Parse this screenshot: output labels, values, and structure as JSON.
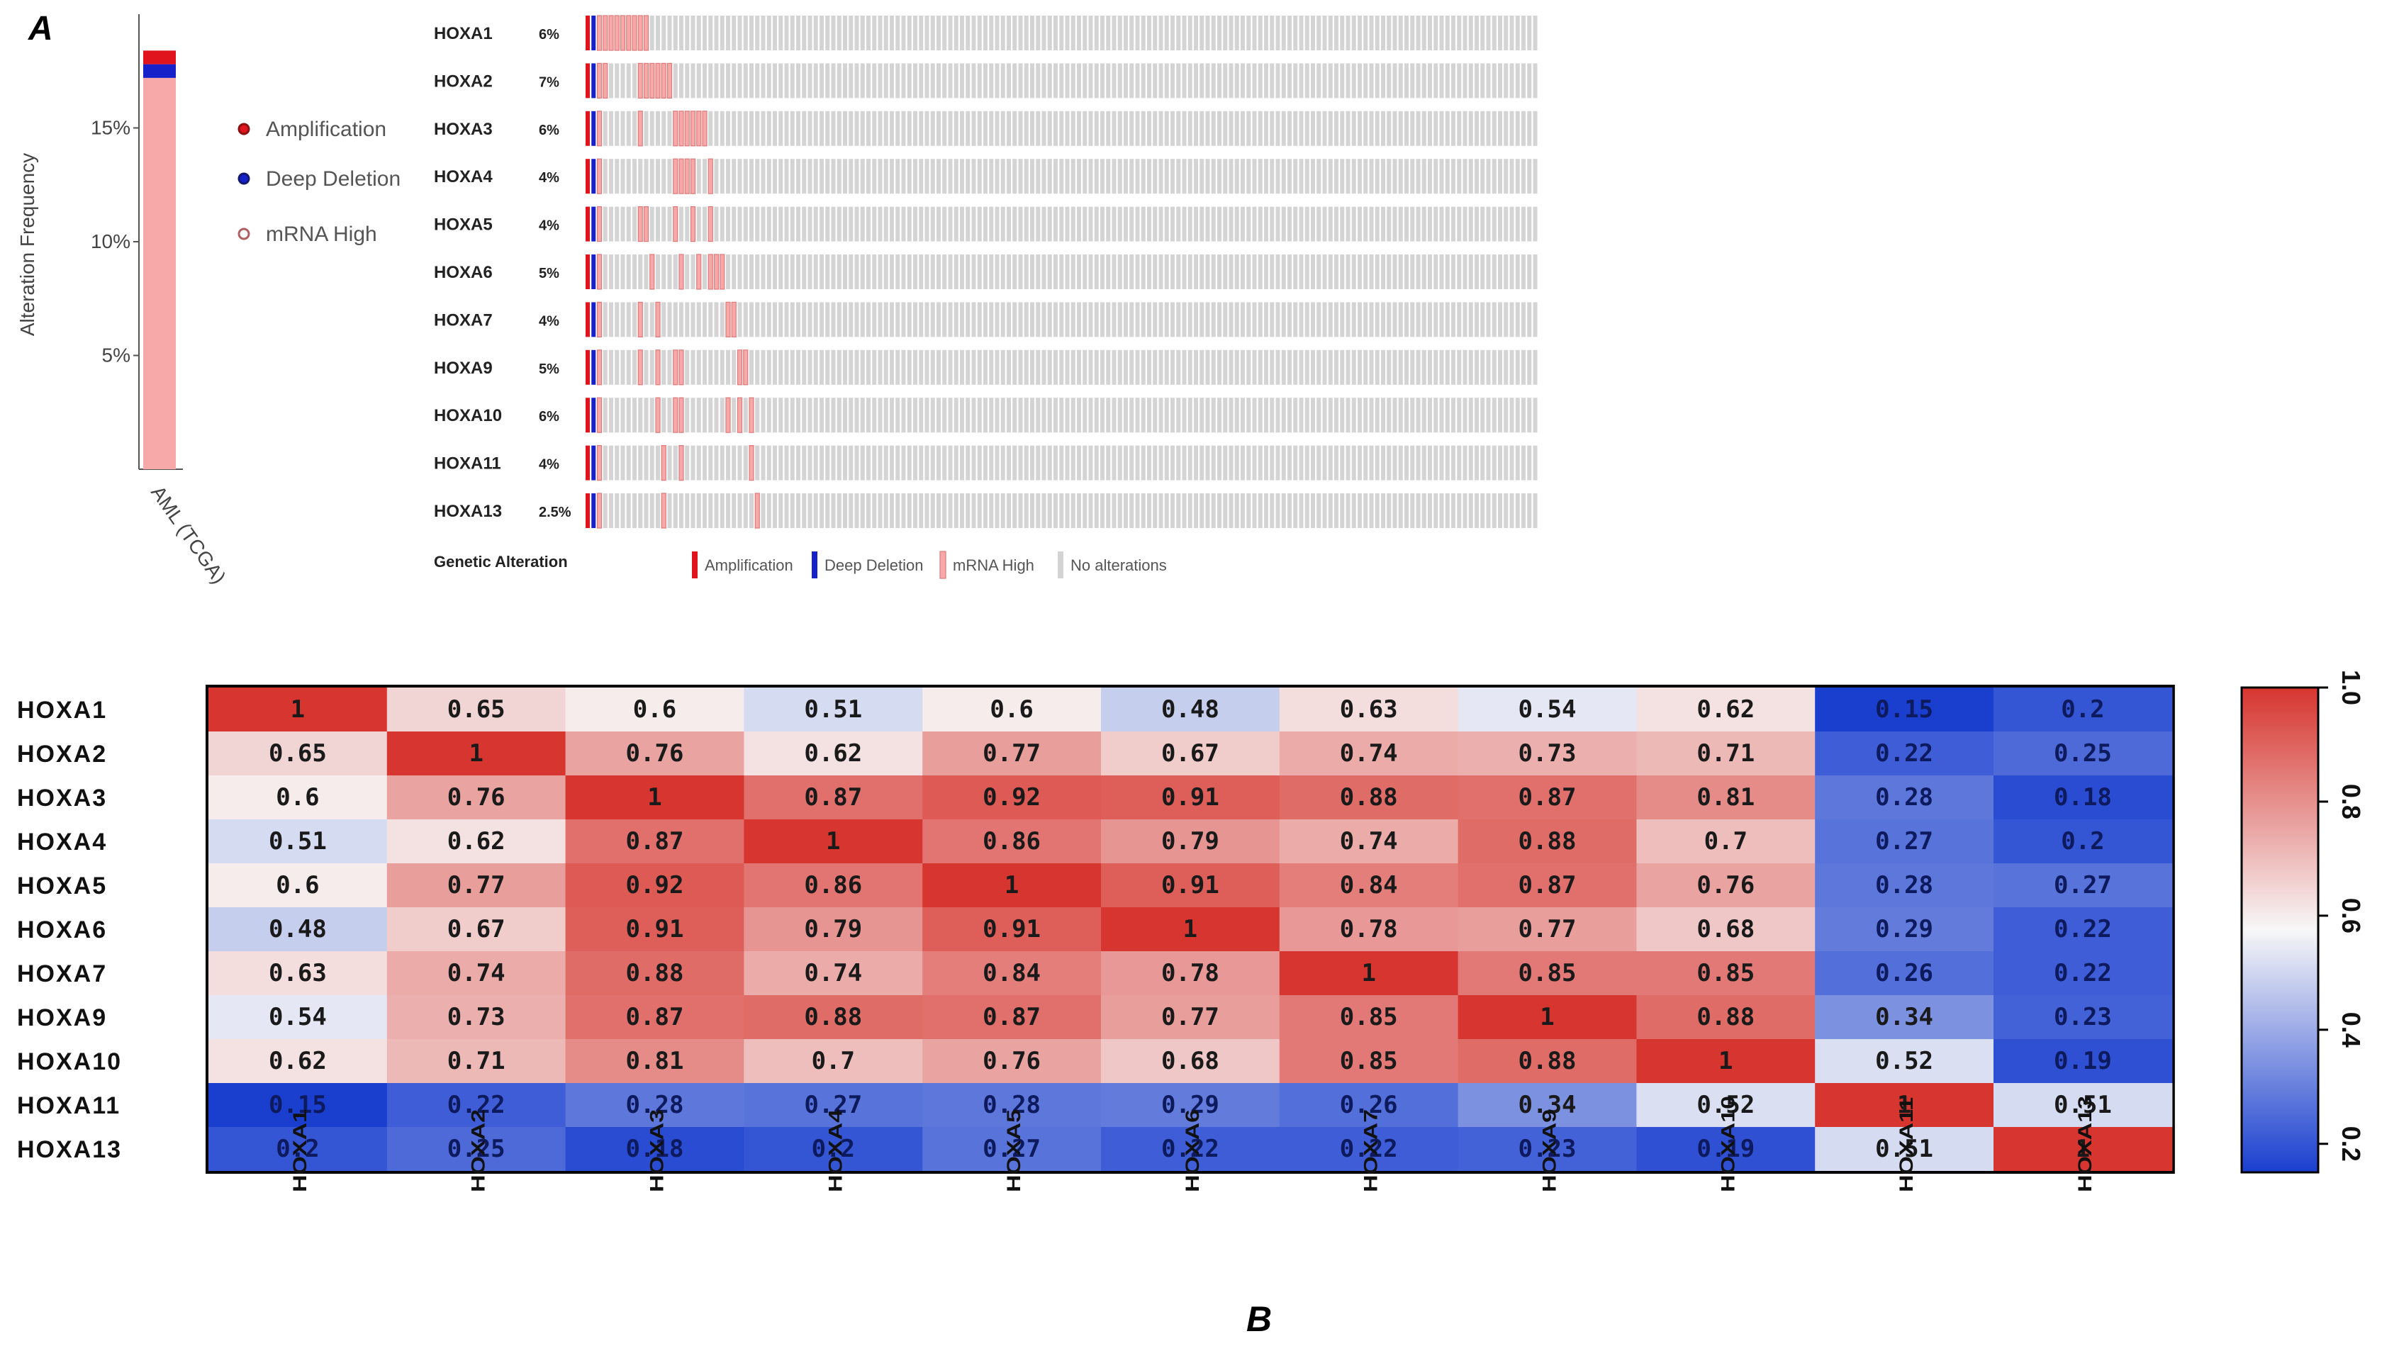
{
  "figure": {
    "panel_a_label": "A",
    "panel_b_label": "B"
  },
  "colors": {
    "amplification": "#e0141c",
    "deep_deletion": "#1621c9",
    "mrna_high": "#f7a8a8",
    "no_alteration": "#d4d4d4",
    "heat_low": "#1a3fcf",
    "heat_mid": "#f7f7f7",
    "heat_high": "#d7352f"
  },
  "chart_data": [
    {
      "type": "bar",
      "title": "",
      "ylabel": "Alteration Frequency",
      "categories": [
        "AML (TCGA)"
      ],
      "ylim": [
        0,
        20
      ],
      "yticks": [
        "5%",
        "10%",
        "15%"
      ],
      "ytick_values": [
        5,
        10,
        15
      ],
      "series": [
        {
          "name": "mRNA High",
          "values": [
            17.2
          ]
        },
        {
          "name": "Deep Deletion",
          "values": [
            0.6
          ]
        },
        {
          "name": "Amplification",
          "values": [
            0.6
          ]
        }
      ],
      "legend": [
        "Amplification",
        "Deep Deletion",
        "mRNA High"
      ]
    },
    {
      "type": "table",
      "subtype": "oncoprint",
      "genes": [
        "HOXA1",
        "HOXA2",
        "HOXA3",
        "HOXA4",
        "HOXA5",
        "HOXA6",
        "HOXA7",
        "HOXA9",
        "HOXA10",
        "HOXA11",
        "HOXA13"
      ],
      "percents": [
        "6%",
        "7%",
        "6%",
        "4%",
        "4%",
        "5%",
        "4%",
        "5%",
        "6%",
        "4%",
        "2.5%"
      ],
      "n_samples": 163,
      "amplification_samples": [
        0
      ],
      "deep_deletion_samples": [
        1
      ],
      "mrna_high_samples": [
        [
          2,
          3,
          4,
          5,
          6,
          7,
          8,
          9,
          10
        ],
        [
          2,
          3,
          9,
          10,
          11,
          12,
          13,
          14
        ],
        [
          2,
          9,
          15,
          16,
          17,
          18,
          19,
          20
        ],
        [
          2,
          15,
          16,
          17,
          18,
          21
        ],
        [
          2,
          9,
          10,
          15,
          18,
          21
        ],
        [
          2,
          11,
          16,
          19,
          21,
          22,
          23
        ],
        [
          2,
          9,
          12,
          24,
          25
        ],
        [
          2,
          9,
          12,
          15,
          16,
          26,
          27
        ],
        [
          2,
          12,
          15,
          16,
          24,
          26,
          28
        ],
        [
          2,
          13,
          16,
          28
        ],
        [
          2,
          13,
          29
        ]
      ],
      "legend_title": "Genetic Alteration",
      "legend": [
        "Amplification",
        "Deep Deletion",
        "mRNA High",
        "No alterations"
      ]
    },
    {
      "type": "heatmap",
      "rows": [
        "HOXA1",
        "HOXA2",
        "HOXA3",
        "HOXA4",
        "HOXA5",
        "HOXA6",
        "HOXA7",
        "HOXA9",
        "HOXA10",
        "HOXA11",
        "HOXA13"
      ],
      "cols": [
        "HOXA1",
        "HOXA2",
        "HOXA3",
        "HOXA4",
        "HOXA5",
        "HOXA6",
        "HOXA7",
        "HOXA9",
        "HOXA10",
        "HOXA11",
        "HOXA13"
      ],
      "values": [
        [
          1.0,
          0.65,
          0.6,
          0.51,
          0.6,
          0.48,
          0.63,
          0.54,
          0.62,
          0.15,
          0.2
        ],
        [
          0.65,
          1.0,
          0.76,
          0.62,
          0.77,
          0.67,
          0.74,
          0.73,
          0.71,
          0.22,
          0.25
        ],
        [
          0.6,
          0.76,
          1.0,
          0.87,
          0.92,
          0.91,
          0.88,
          0.87,
          0.81,
          0.28,
          0.18
        ],
        [
          0.51,
          0.62,
          0.87,
          1.0,
          0.86,
          0.79,
          0.74,
          0.88,
          0.7,
          0.27,
          0.2
        ],
        [
          0.6,
          0.77,
          0.92,
          0.86,
          1.0,
          0.91,
          0.84,
          0.87,
          0.76,
          0.28,
          0.27
        ],
        [
          0.48,
          0.67,
          0.91,
          0.79,
          0.91,
          1.0,
          0.78,
          0.77,
          0.68,
          0.29,
          0.22
        ],
        [
          0.63,
          0.74,
          0.88,
          0.74,
          0.84,
          0.78,
          1.0,
          0.85,
          0.85,
          0.26,
          0.22
        ],
        [
          0.54,
          0.73,
          0.87,
          0.88,
          0.87,
          0.77,
          0.85,
          1.0,
          0.88,
          0.34,
          0.23
        ],
        [
          0.62,
          0.71,
          0.81,
          0.7,
          0.76,
          0.68,
          0.85,
          0.88,
          1.0,
          0.52,
          0.19
        ],
        [
          0.15,
          0.22,
          0.28,
          0.27,
          0.28,
          0.29,
          0.26,
          0.34,
          0.52,
          1.0,
          0.51
        ],
        [
          0.2,
          0.25,
          0.18,
          0.2,
          0.27,
          0.22,
          0.22,
          0.23,
          0.19,
          0.51,
          1.0
        ]
      ],
      "vmin": 0.15,
      "vmax": 1.0,
      "colorbar_ticks": [
        1.0,
        0.8,
        0.6,
        0.4,
        0.2
      ],
      "colorbar_tick_labels": [
        "1.0",
        "0.8",
        "0.6",
        "0.4",
        "0.2"
      ]
    }
  ]
}
